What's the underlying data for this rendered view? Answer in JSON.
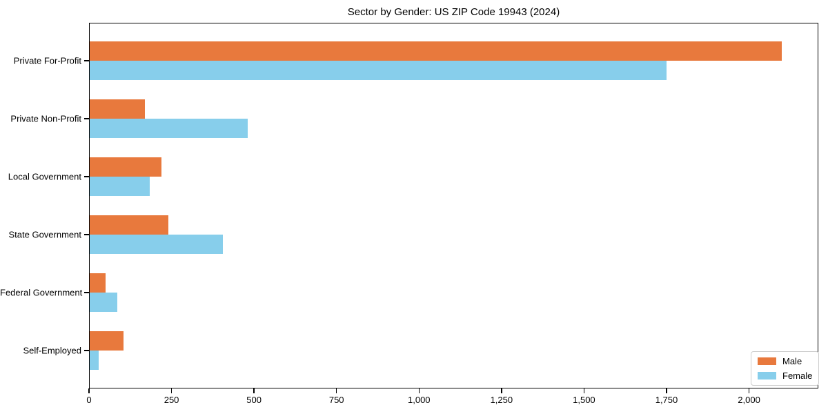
{
  "chart_data": {
    "type": "bar",
    "orientation": "horizontal",
    "title": "Sector by Gender: US ZIP Code 19943 (2024)",
    "xlabel": "",
    "ylabel": "",
    "categories": [
      "Private For-Profit",
      "Private Non-Profit",
      "Local Government",
      "State Government",
      "Federal Government",
      "Self-Employed"
    ],
    "series": [
      {
        "name": "Male",
        "color": "#E8793D",
        "values": [
          2100,
          170,
          220,
          240,
          50,
          105
        ]
      },
      {
        "name": "Female",
        "color": "#87CEEB",
        "values": [
          1750,
          480,
          185,
          405,
          85,
          30
        ]
      }
    ],
    "xlim": [
      0,
      2210
    ],
    "xticks": [
      0,
      250,
      500,
      750,
      1000,
      1250,
      1500,
      1750,
      2000
    ],
    "xtick_labels": [
      "0",
      "250",
      "500",
      "750",
      "1,000",
      "1,250",
      "1,500",
      "1,750",
      "2,000"
    ],
    "grid": false,
    "legend": [
      "Male",
      "Female"
    ],
    "legend_position": "lower-right",
    "axis_color": "#000000",
    "background_color": "#ffffff"
  }
}
